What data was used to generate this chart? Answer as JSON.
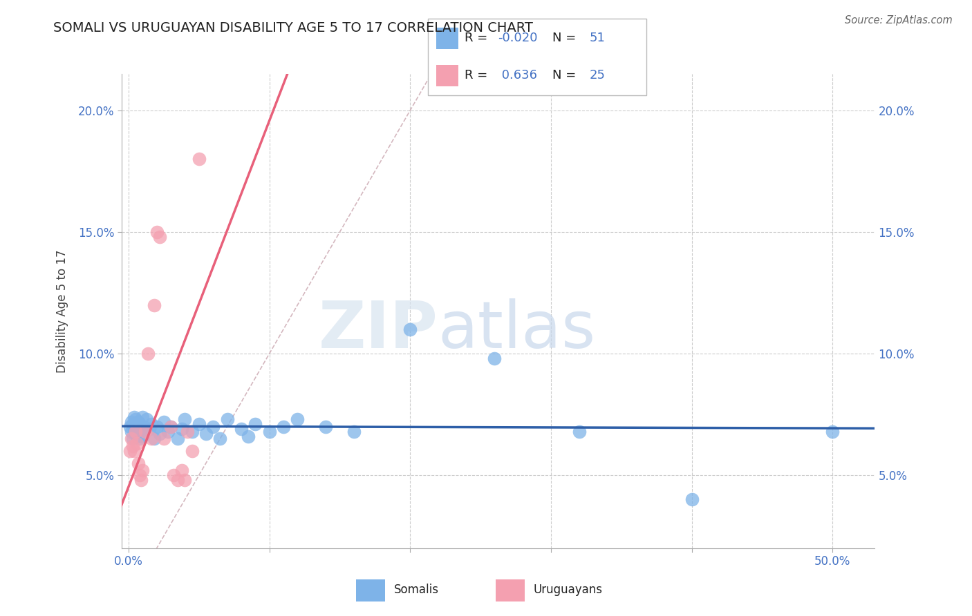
{
  "title": "SOMALI VS URUGUAYAN DISABILITY AGE 5 TO 17 CORRELATION CHART",
  "source": "Source: ZipAtlas.com",
  "xlabel_ticks": [
    "0.0%",
    "",
    "",
    "",
    "",
    "50.0%"
  ],
  "xlabel_vals": [
    0.0,
    0.1,
    0.2,
    0.3,
    0.4,
    0.5
  ],
  "ylabel_ticks": [
    "5.0%",
    "10.0%",
    "15.0%",
    "20.0%"
  ],
  "ylabel_vals": [
    0.05,
    0.1,
    0.15,
    0.2
  ],
  "xlim": [
    -0.005,
    0.53
  ],
  "ylim": [
    0.02,
    0.215
  ],
  "ylabel": "Disability Age 5 to 17",
  "somali_color": "#7EB3E8",
  "uruguayan_color": "#F4A0B0",
  "somali_R": -0.02,
  "somali_N": 51,
  "uruguayan_R": 0.636,
  "uruguayan_N": 25,
  "somali_scatter_x": [
    0.001,
    0.002,
    0.002,
    0.003,
    0.003,
    0.004,
    0.004,
    0.005,
    0.005,
    0.006,
    0.006,
    0.007,
    0.007,
    0.008,
    0.008,
    0.009,
    0.01,
    0.01,
    0.011,
    0.012,
    0.013,
    0.015,
    0.016,
    0.018,
    0.02,
    0.022,
    0.025,
    0.028,
    0.03,
    0.035,
    0.038,
    0.04,
    0.045,
    0.05,
    0.055,
    0.06,
    0.065,
    0.07,
    0.08,
    0.085,
    0.09,
    0.1,
    0.11,
    0.12,
    0.14,
    0.16,
    0.2,
    0.26,
    0.32,
    0.4,
    0.5
  ],
  "somali_scatter_y": [
    0.07,
    0.068,
    0.072,
    0.065,
    0.071,
    0.069,
    0.074,
    0.067,
    0.073,
    0.07,
    0.066,
    0.072,
    0.068,
    0.065,
    0.071,
    0.069,
    0.074,
    0.066,
    0.07,
    0.068,
    0.073,
    0.069,
    0.071,
    0.065,
    0.07,
    0.067,
    0.072,
    0.068,
    0.07,
    0.065,
    0.069,
    0.073,
    0.068,
    0.071,
    0.067,
    0.07,
    0.065,
    0.073,
    0.069,
    0.066,
    0.071,
    0.068,
    0.07,
    0.073,
    0.07,
    0.068,
    0.11,
    0.098,
    0.068,
    0.04,
    0.068
  ],
  "uruguayan_scatter_x": [
    0.001,
    0.002,
    0.003,
    0.004,
    0.005,
    0.006,
    0.007,
    0.008,
    0.009,
    0.01,
    0.012,
    0.014,
    0.016,
    0.018,
    0.02,
    0.022,
    0.025,
    0.03,
    0.032,
    0.035,
    0.038,
    0.04,
    0.042,
    0.045,
    0.05
  ],
  "uruguayan_scatter_y": [
    0.06,
    0.065,
    0.062,
    0.06,
    0.068,
    0.063,
    0.055,
    0.05,
    0.048,
    0.052,
    0.068,
    0.1,
    0.065,
    0.12,
    0.15,
    0.148,
    0.065,
    0.07,
    0.05,
    0.048,
    0.052,
    0.048,
    0.068,
    0.06,
    0.18
  ],
  "somali_line_color": "#2E5FA8",
  "uruguayan_line_color": "#E8607A",
  "diagonal_color": "#D0B0B8",
  "grid_color": "#CCCCCC",
  "axis_color": "#4472C4",
  "tick_label_color": "#4472C4",
  "background_color": "#FFFFFF",
  "watermark_zip": "ZIP",
  "watermark_atlas": "atlas"
}
